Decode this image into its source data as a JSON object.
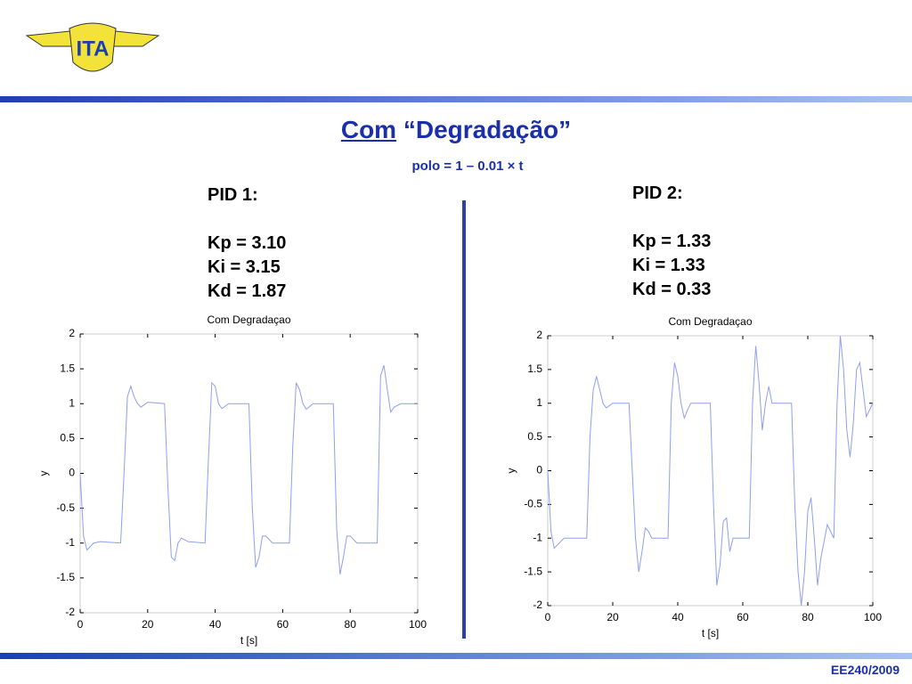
{
  "logo": {
    "text": "ITA"
  },
  "header": {
    "title_underlined": "Com",
    "title_rest": "“Degradação”",
    "subtitle": "polo = 1 – 0.01 × t"
  },
  "pid1": {
    "title": "PID 1:",
    "lines": [
      "Kp = 3.10",
      "Ki = 3.15",
      "Kd = 1.87"
    ]
  },
  "pid2": {
    "title": "PID 2:",
    "lines": [
      "Kp = 1.33",
      "Ki = 1.33",
      "Kd = 0.33"
    ]
  },
  "footer": {
    "text": "EE240/2009"
  },
  "chart_data": [
    {
      "type": "line",
      "title": "Com Degradaçao",
      "xlabel": "t [s]",
      "ylabel": "y",
      "color": "#8f9ff2",
      "xlim": [
        0,
        100
      ],
      "ylim": [
        -2,
        2
      ],
      "xticks": [
        0,
        20,
        40,
        60,
        80,
        100
      ],
      "yticks": [
        -2,
        -1.5,
        -1,
        -0.5,
        0,
        0.5,
        1,
        1.5,
        2
      ],
      "x": [
        0,
        1,
        2,
        4,
        6,
        12,
        13,
        14,
        15,
        16,
        17,
        18,
        20,
        25,
        26,
        27,
        28,
        29,
        30,
        32,
        37,
        38,
        39,
        40,
        41,
        42,
        44,
        50,
        51,
        52,
        53,
        54,
        55,
        57,
        62,
        63,
        64,
        65,
        66,
        67,
        69,
        75,
        76,
        77,
        78,
        79,
        80,
        82,
        88,
        89,
        90,
        91,
        92,
        93,
        95,
        100
      ],
      "values": [
        0,
        -0.9,
        -1.1,
        -1.0,
        -0.98,
        -1.0,
        0,
        1.1,
        1.25,
        1.1,
        1.0,
        0.95,
        1.02,
        1.0,
        -0.2,
        -1.2,
        -1.25,
        -1.0,
        -0.93,
        -0.98,
        -1.0,
        0.2,
        1.3,
        1.25,
        1.0,
        0.93,
        1.0,
        1.0,
        -0.5,
        -1.35,
        -1.2,
        -0.9,
        -0.9,
        -1.0,
        -1.0,
        0.4,
        1.3,
        1.2,
        1.0,
        0.92,
        1.0,
        1.0,
        -0.8,
        -1.45,
        -1.2,
        -0.9,
        -0.9,
        -1.0,
        -1.0,
        1.4,
        1.55,
        1.2,
        0.88,
        0.95,
        1.0,
        1.0
      ]
    },
    {
      "type": "line",
      "title": "Com Degradaçao",
      "xlabel": "t [s]",
      "ylabel": "y",
      "color": "#8f9ff2",
      "xlim": [
        0,
        100
      ],
      "ylim": [
        -2,
        2
      ],
      "xticks": [
        0,
        20,
        40,
        60,
        80,
        100
      ],
      "yticks": [
        -2,
        -1.5,
        -1,
        -0.5,
        0,
        0.5,
        1,
        1.5,
        2
      ],
      "x": [
        0,
        1,
        2,
        3,
        5,
        7,
        12,
        13,
        14,
        15,
        16,
        17,
        18,
        20,
        25,
        26,
        27,
        28,
        29,
        30,
        31,
        32,
        37,
        38,
        39,
        40,
        41,
        42,
        43,
        44,
        50,
        51,
        52,
        53,
        54,
        55,
        56,
        57,
        62,
        63,
        64,
        65,
        66,
        67,
        68,
        69,
        75,
        76,
        77,
        78,
        79,
        80,
        81,
        82,
        83,
        84,
        86,
        88,
        89,
        90,
        91,
        92,
        93,
        94,
        95,
        96,
        97,
        98,
        100
      ],
      "values": [
        0,
        -0.9,
        -1.15,
        -1.1,
        -1.0,
        -1.0,
        -1.0,
        0.5,
        1.2,
        1.4,
        1.2,
        1.0,
        0.93,
        1.0,
        1.0,
        0,
        -1.0,
        -1.5,
        -1.2,
        -0.85,
        -0.9,
        -1.0,
        -1.0,
        1.0,
        1.6,
        1.4,
        1.0,
        0.78,
        0.9,
        1.0,
        1.0,
        -0.5,
        -1.7,
        -1.4,
        -0.75,
        -0.7,
        -1.2,
        -1.0,
        -1.0,
        1.0,
        1.85,
        1.3,
        0.6,
        1.0,
        1.25,
        1.0,
        1.0,
        -0.5,
        -1.5,
        -2.0,
        -1.5,
        -0.6,
        -0.4,
        -1.0,
        -1.7,
        -1.3,
        -0.8,
        -1.0,
        1.0,
        2.0,
        1.5,
        0.6,
        0.2,
        0.7,
        1.5,
        1.6,
        1.2,
        0.8,
        1.0
      ]
    }
  ]
}
